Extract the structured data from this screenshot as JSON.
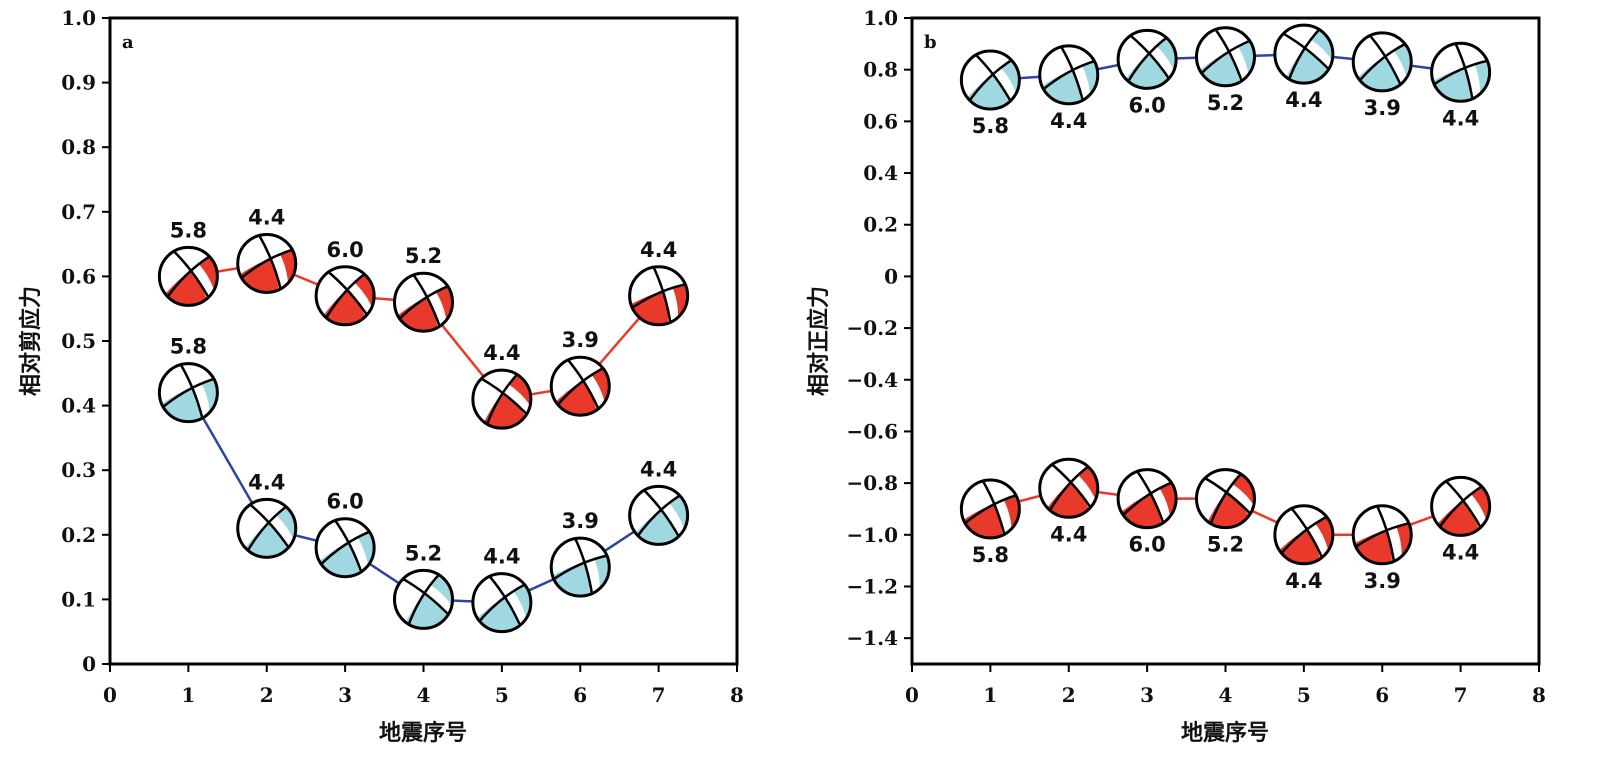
{
  "colors": {
    "red_series": "#e8392a",
    "blue_series": "#2c45a0",
    "blue_fill": "#9fd8e0",
    "frame": "#000000"
  },
  "chart_data": [
    {
      "type": "line",
      "panel_label": "a",
      "xlabel": "地震序号",
      "ylabel": "相对剪应力",
      "xlim": [
        0,
        8
      ],
      "ylim": [
        0,
        1.0
      ],
      "xticks": [
        "0",
        "1",
        "2",
        "3",
        "4",
        "5",
        "6",
        "7",
        "8"
      ],
      "yticks": [
        "0",
        "0.1",
        "0.2",
        "0.3",
        "0.4",
        "0.5",
        "0.6",
        "0.7",
        "0.8",
        "0.9",
        "1.0"
      ],
      "grid": false,
      "x": [
        1,
        2,
        3,
        4,
        5,
        6,
        7
      ],
      "series": [
        {
          "color": "red",
          "values": [
            0.6,
            0.62,
            0.57,
            0.56,
            0.41,
            0.43,
            0.57
          ],
          "labels": [
            "5.8",
            "4.4",
            "6.0",
            "5.2",
            "4.4",
            "3.9",
            "4.4"
          ],
          "label_pos": "above"
        },
        {
          "color": "blue",
          "values": [
            0.42,
            0.21,
            0.18,
            0.1,
            0.095,
            0.15,
            0.23
          ],
          "labels": [
            "5.8",
            "4.4",
            "6.0",
            "5.2",
            "4.4",
            "3.9",
            "4.4"
          ],
          "label_pos": "above"
        }
      ]
    },
    {
      "type": "line",
      "panel_label": "b",
      "xlabel": "地震序号",
      "ylabel": "相对正应力",
      "xlim": [
        0,
        8
      ],
      "ylim": [
        -1.5,
        1.0
      ],
      "xticks": [
        "0",
        "1",
        "2",
        "3",
        "4",
        "5",
        "6",
        "7",
        "8"
      ],
      "yticks": [
        "1.0",
        "0.8",
        "0.6",
        "0.4",
        "0.2",
        "0",
        "−0.2",
        "−0.4",
        "−0.6",
        "−0.8",
        "−1.0",
        "−1.2",
        "−1.4"
      ],
      "grid": false,
      "x": [
        1,
        2,
        3,
        4,
        5,
        6,
        7
      ],
      "series": [
        {
          "color": "blue",
          "values": [
            0.76,
            0.78,
            0.84,
            0.85,
            0.86,
            0.83,
            0.79
          ],
          "labels": [
            "5.8",
            "4.4",
            "6.0",
            "5.2",
            "4.4",
            "3.9",
            "4.4"
          ],
          "label_pos": "below"
        },
        {
          "color": "red",
          "values": [
            -0.9,
            -0.82,
            -0.86,
            -0.86,
            -1.0,
            -1.0,
            -0.89
          ],
          "labels": [
            "5.8",
            "4.4",
            "6.0",
            "5.2",
            "4.4",
            "3.9",
            "4.4"
          ],
          "label_pos": "below"
        }
      ]
    }
  ]
}
